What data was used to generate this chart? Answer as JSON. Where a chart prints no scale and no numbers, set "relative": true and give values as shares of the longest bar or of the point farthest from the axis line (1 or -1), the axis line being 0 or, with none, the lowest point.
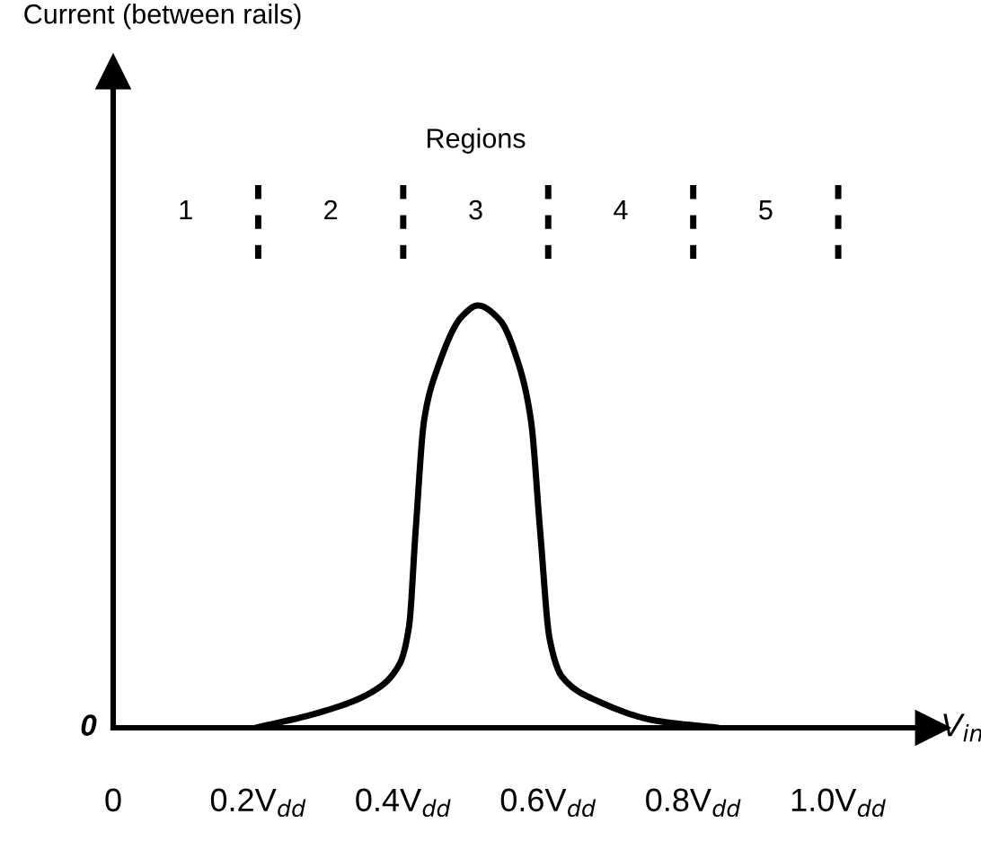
{
  "chart_data": {
    "type": "line",
    "relative": true,
    "xlabel": "V$_{in}$",
    "x": [
      0.197,
      0.292,
      0.361,
      0.395,
      0.408,
      0.417,
      0.429,
      0.447,
      0.481,
      0.503,
      0.533,
      0.559,
      0.576,
      0.589,
      0.602,
      0.619,
      0.67,
      0.748,
      0.834
    ],
    "series": [
      {
        "color": "#000000",
        "values": [
          0,
          0.04,
          0.089,
          0.151,
          0.24,
          0.463,
          0.73,
          0.85,
          0.974,
          1.0,
          0.966,
          0.862,
          0.73,
          0.463,
          0.21,
          0.121,
          0.062,
          0.017,
          0
        ]
      }
    ],
    "xlim": [
      0,
      1.13
    ],
    "xticks": [
      0,
      {
        "value": 0.2,
        "label": "0.2V$_{dd}$"
      },
      {
        "value": 0.4,
        "label": "0.4V$_{dd}$"
      },
      {
        "value": 0.6,
        "label": "0.6V$_{dd}$"
      },
      {
        "value": 0.8,
        "label": "0.8V$_{dd}$"
      },
      {
        "value": 1.0,
        "label": "1.0V$_{dd}$"
      }
    ],
    "annotations": [
      "Current (between rails)",
      "Regions",
      "1",
      "2",
      "3",
      "4",
      "5",
      "0"
    ],
    "grid": false,
    "legend": false,
    "marker": "none",
    "line_style": "solid"
  }
}
